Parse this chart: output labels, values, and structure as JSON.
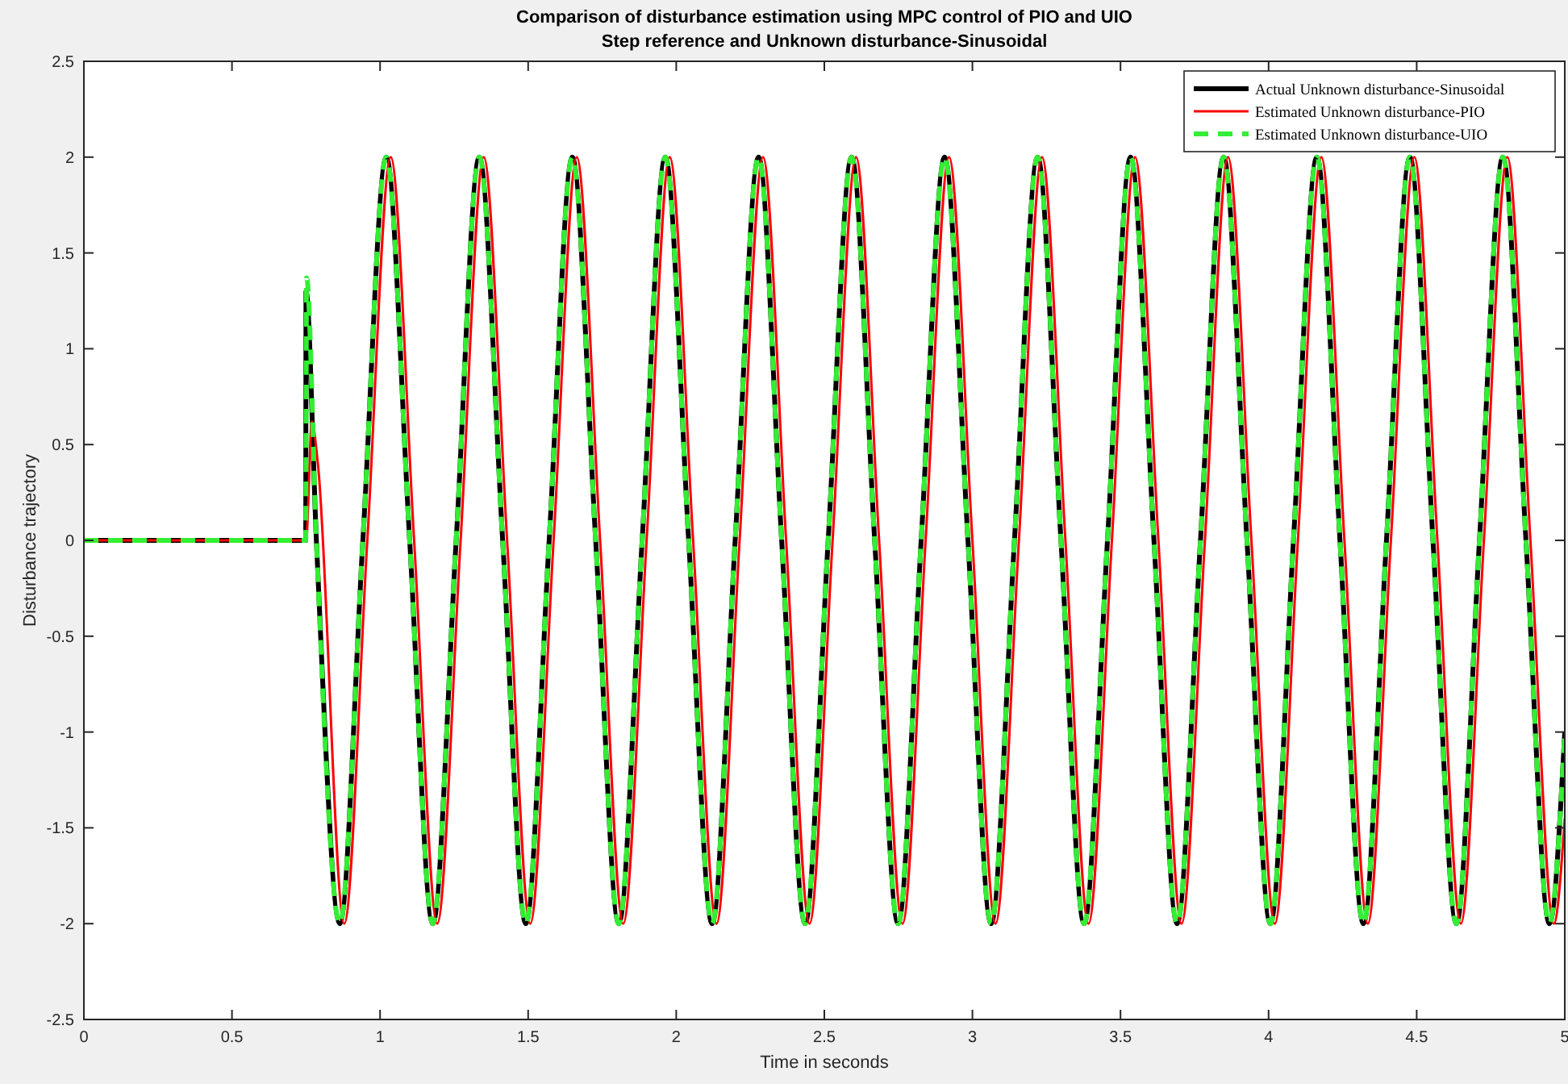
{
  "chart_data": {
    "type": "line",
    "title": "Comparison of disturbance estimation using MPC control of PIO and UIO",
    "subtitle": "Step reference and Unknown disturbance-Sinusoidal",
    "xlabel": "Time in seconds",
    "ylabel": "Disturbance trajectory",
    "xlim": [
      0,
      5
    ],
    "xticks": [
      0,
      0.5,
      1,
      1.5,
      2,
      2.5,
      3,
      3.5,
      4,
      4.5,
      5
    ],
    "ylim": [
      -2.5,
      2.5
    ],
    "yticks": [
      -2.5,
      -2,
      -1.5,
      -1,
      -0.5,
      0,
      0.5,
      1,
      1.5,
      2,
      2.5
    ],
    "grid": false,
    "legend": "top right",
    "series": [
      {
        "name": "Actual Unknown disturbance-Sinusoidal",
        "color": "#000000",
        "line_style": "solid",
        "x": [
          0,
          0.749,
          0.75,
          0.785,
          0.864,
          0.942,
          1.021,
          1.1,
          1.178,
          1.257,
          1.335,
          1.414,
          1.492,
          1.571,
          1.649,
          1.728,
          1.806,
          1.885,
          1.963,
          2.042,
          2.121,
          2.199,
          2.278,
          2.356,
          2.435,
          2.513,
          2.592,
          2.67,
          2.749,
          2.827,
          2.906,
          2.985,
          3.063,
          3.142,
          3.22,
          3.299,
          3.377,
          3.456,
          3.534,
          3.613,
          3.691,
          3.77,
          3.848,
          3.927,
          4.006,
          4.084,
          4.163,
          4.241,
          4.32,
          4.398,
          4.477,
          4.555,
          4.634,
          4.712,
          4.791,
          4.869,
          4.948,
          5
        ],
        "values": [
          0,
          0,
          1.3,
          0,
          -2,
          0,
          2,
          0,
          -2,
          0,
          2,
          0,
          -2,
          0,
          2,
          0,
          -2,
          0,
          2,
          0,
          -2,
          0,
          2,
          0,
          -2,
          0,
          2,
          0,
          -2,
          0,
          2,
          0,
          -2,
          0,
          2,
          0,
          -2,
          0,
          2,
          0,
          -2,
          0,
          2,
          0,
          -2,
          0,
          2,
          0,
          -2,
          0,
          2,
          0,
          -2,
          0,
          2,
          0,
          -2,
          -1
        ]
      },
      {
        "name": "Estimated Unknown disturbance-PIO",
        "color": "#ff0000",
        "line_style": "solid",
        "x": [
          0,
          0.75,
          0.77,
          0.79,
          0.879,
          0.957,
          1.036,
          1.115,
          1.193,
          1.272,
          1.35,
          1.429,
          1.507,
          1.586,
          1.664,
          1.743,
          1.821,
          1.9,
          1.978,
          2.057,
          2.136,
          2.214,
          2.293,
          2.371,
          2.45,
          2.528,
          2.607,
          2.685,
          2.764,
          2.842,
          2.921,
          3,
          3.078,
          3.157,
          3.235,
          3.314,
          3.392,
          3.471,
          3.549,
          3.628,
          3.706,
          3.785,
          3.863,
          3.942,
          4.021,
          4.099,
          4.178,
          4.256,
          4.335,
          4.413,
          4.492,
          4.57,
          4.649,
          4.727,
          4.806,
          4.884,
          4.963,
          5
        ],
        "values": [
          0,
          0,
          0.62,
          0.4,
          -2,
          0,
          2,
          0,
          -2,
          0,
          2,
          0,
          -2,
          0,
          2,
          0,
          -2,
          0,
          2,
          0,
          -2,
          0,
          2,
          0,
          -2,
          0,
          2,
          0,
          -2,
          0,
          2,
          0,
          -2,
          0,
          2,
          0,
          -2,
          0,
          2,
          0,
          -2,
          0,
          2,
          0,
          -2,
          0,
          2,
          0,
          -2,
          0,
          2,
          0,
          -2,
          0,
          2,
          0,
          -2,
          -1.45
        ]
      },
      {
        "name": "Estimated Unknown disturbance-UIO",
        "color": "#33ee33",
        "line_style": "dashed",
        "x": [
          0,
          0.749,
          0.752,
          0.785,
          0.864,
          0.942,
          1.021,
          1.1,
          1.178,
          1.257,
          1.335,
          1.414,
          1.492,
          1.571,
          1.649,
          1.728,
          1.806,
          1.885,
          1.963,
          2.042,
          2.121,
          2.199,
          2.278,
          2.356,
          2.435,
          2.513,
          2.592,
          2.67,
          2.749,
          2.827,
          2.906,
          2.985,
          3.063,
          3.142,
          3.22,
          3.299,
          3.377,
          3.456,
          3.534,
          3.613,
          3.691,
          3.77,
          3.848,
          3.927,
          4.006,
          4.084,
          4.163,
          4.241,
          4.32,
          4.398,
          4.477,
          4.555,
          4.634,
          4.712,
          4.791,
          4.869,
          4.948,
          5
        ],
        "values": [
          0,
          0,
          1.37,
          0,
          -2,
          0,
          2,
          0,
          -2,
          0,
          2,
          0,
          -2,
          0,
          2,
          0,
          -2,
          0,
          2,
          0,
          -2,
          0,
          2,
          0,
          -2,
          0,
          2,
          0,
          -2,
          0,
          2,
          0,
          -2,
          0,
          2,
          0,
          -2,
          0,
          2,
          0,
          -2,
          0,
          2,
          0,
          -2,
          0,
          2,
          0,
          -2,
          0,
          2,
          0,
          -2,
          0,
          2,
          0,
          -2,
          -1
        ]
      }
    ]
  }
}
